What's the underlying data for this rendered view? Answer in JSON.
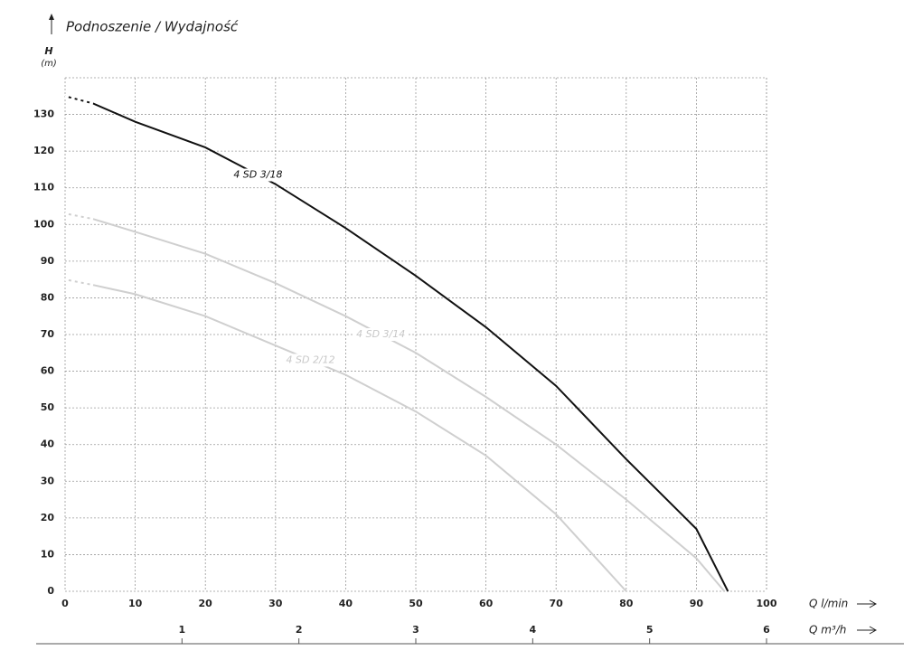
{
  "chart_data": {
    "type": "line",
    "title": "Podnoszenie / Wydajność",
    "y_label": "H",
    "y_unit": "(m)",
    "x_label": "Q l/min",
    "x2_label": "Q m³/h",
    "xlim": [
      0,
      100
    ],
    "xticks": [
      0,
      10,
      20,
      30,
      40,
      50,
      60,
      70,
      80,
      90,
      100
    ],
    "x2lim": [
      0,
      6
    ],
    "x2ticks": [
      1,
      2,
      3,
      4,
      5,
      6
    ],
    "ylim": [
      0,
      140
    ],
    "yticks": [
      0,
      10,
      20,
      30,
      40,
      50,
      60,
      70,
      80,
      90,
      100,
      110,
      120,
      130
    ],
    "grid": true,
    "series": [
      {
        "name": "4 SD 3/18",
        "color": "#111111",
        "x": [
          0,
          4,
          10,
          20,
          25,
          30,
          40,
          50,
          60,
          70,
          80,
          90,
          94.5
        ],
        "values": [
          135,
          133,
          128,
          121,
          116,
          111,
          99,
          86,
          72,
          56,
          36,
          17,
          0
        ]
      },
      {
        "name": "4 SD 3/14",
        "color": "#cfcfcf",
        "x": [
          0,
          4,
          10,
          20,
          30,
          40,
          50,
          60,
          70,
          80,
          90,
          94
        ],
        "values": [
          103,
          101.5,
          98,
          92,
          84,
          75,
          65,
          53,
          40,
          25,
          9,
          0
        ]
      },
      {
        "name": "4 SD 2/12",
        "color": "#cfcfcf",
        "x": [
          0,
          4,
          10,
          20,
          30,
          40,
          50,
          60,
          70,
          80
        ],
        "values": [
          85,
          83.5,
          81,
          75,
          67,
          59,
          49,
          37,
          21,
          0
        ]
      }
    ]
  }
}
